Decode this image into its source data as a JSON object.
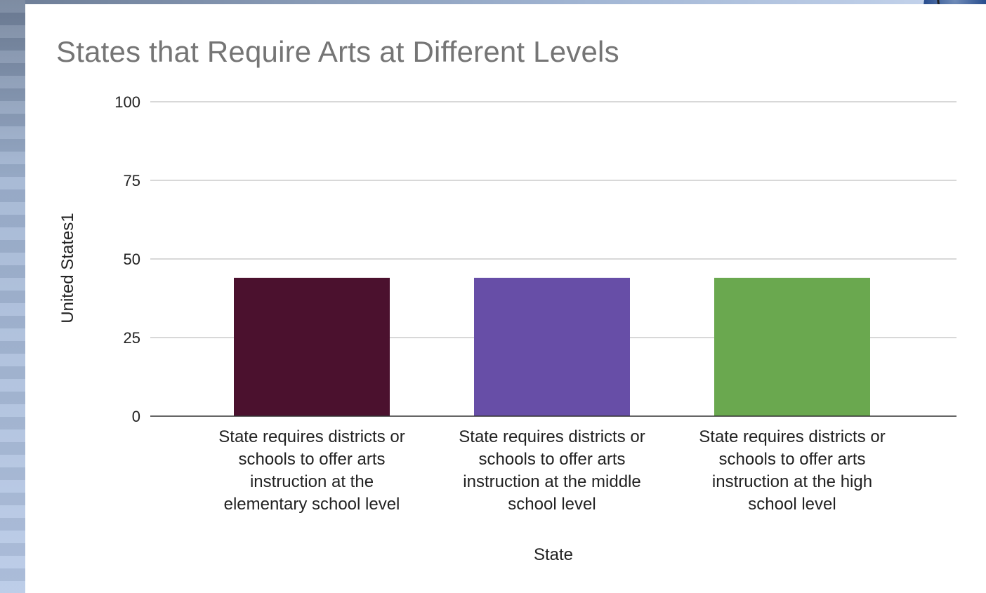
{
  "chart_data": {
    "type": "bar",
    "title": "States that Require Arts at Different Levels",
    "xlabel": "State",
    "ylabel": "United States1",
    "ylim": [
      0,
      100
    ],
    "yticks": [
      "0",
      "25",
      "50",
      "75",
      "100"
    ],
    "grid": true,
    "categories": [
      "State requires districts or schools to offer arts instruction at the elementary school level",
      "State requires districts or schools to offer arts instruction at the middle school level",
      "State requires districts or schools to offer arts instruction at the high school level"
    ],
    "category_lines": [
      [
        "State requires districts or",
        "schools to offer arts",
        "instruction at the",
        "elementary school level"
      ],
      [
        "State requires districts or",
        "schools to offer arts",
        "instruction at the middle",
        "school level"
      ],
      [
        "State requires districts or",
        "schools to offer arts",
        "instruction at the high",
        "school level"
      ]
    ],
    "values": [
      44,
      44,
      44
    ],
    "colors": [
      "#4b112e",
      "#674ea7",
      "#6aa84f"
    ]
  }
}
